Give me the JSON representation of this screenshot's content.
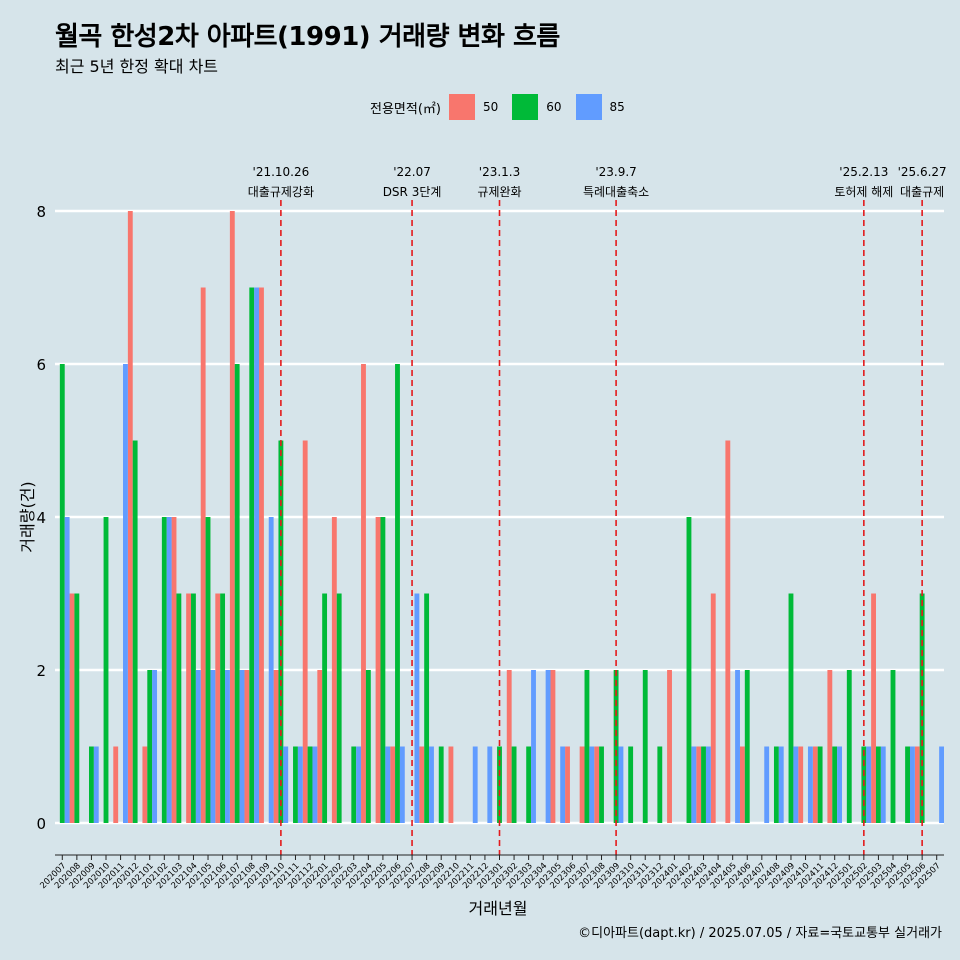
{
  "title": "월곡 한성2차 아파트(1991) 거래량 변화 흐름",
  "subtitle": "최근 5년 한정 확대 차트",
  "caption": "©디아파트(dapt.kr) / 2025.07.05 / 자료=국토교통부 실거래가",
  "legend": {
    "title": "전용면적(㎡)",
    "items": [
      {
        "label": "50",
        "color": "#f8766d"
      },
      {
        "label": "60",
        "color": "#00ba38"
      },
      {
        "label": "85",
        "color": "#619cff"
      }
    ]
  },
  "chart_data": {
    "type": "bar",
    "title": "월곡 한성2차 아파트(1991) 거래량 변화 흐름",
    "subtitle": "최근 5년 한정 확대 차트",
    "xlabel": "거래년월",
    "ylabel": "거래량(건)",
    "ylim": [
      0,
      8
    ],
    "yticks": [
      0,
      2,
      4,
      6,
      8
    ],
    "grid": true,
    "legend_position": "top",
    "categories": [
      "202007",
      "202008",
      "202009",
      "202010",
      "202011",
      "202012",
      "202101",
      "202102",
      "202103",
      "202104",
      "202105",
      "202106",
      "202107",
      "202108",
      "202109",
      "202110",
      "202111",
      "202112",
      "202201",
      "202202",
      "202203",
      "202204",
      "202205",
      "202206",
      "202207",
      "202208",
      "202209",
      "202210",
      "202211",
      "202212",
      "202301",
      "202302",
      "202303",
      "202304",
      "202305",
      "202306",
      "202307",
      "202308",
      "202309",
      "202310",
      "202311",
      "202312",
      "202401",
      "202402",
      "202403",
      "202404",
      "202405",
      "202406",
      "202407",
      "202408",
      "202409",
      "202410",
      "202411",
      "202412",
      "202501",
      "202502",
      "202503",
      "202504",
      "202505",
      "202506",
      "202507"
    ],
    "series": [
      {
        "name": "50",
        "color": "#f8766d",
        "values": [
          0,
          3,
          0,
          0,
          1,
          8,
          1,
          0,
          4,
          3,
          7,
          3,
          8,
          2,
          7,
          2,
          0,
          5,
          2,
          4,
          0,
          6,
          4,
          1,
          0,
          1,
          0,
          1,
          0,
          0,
          0,
          2,
          0,
          0,
          2,
          1,
          1,
          1,
          0,
          0,
          0,
          0,
          2,
          0,
          1,
          3,
          5,
          1,
          0,
          0,
          0,
          1,
          1,
          2,
          0,
          0,
          3,
          0,
          0,
          1,
          0
        ]
      },
      {
        "name": "60",
        "color": "#00ba38",
        "values": [
          6,
          3,
          1,
          4,
          0,
          5,
          2,
          4,
          3,
          3,
          4,
          3,
          6,
          7,
          0,
          5,
          1,
          1,
          3,
          3,
          1,
          2,
          4,
          6,
          0,
          3,
          1,
          0,
          0,
          0,
          1,
          1,
          1,
          0,
          0,
          0,
          2,
          1,
          2,
          1,
          2,
          1,
          0,
          4,
          1,
          0,
          0,
          2,
          0,
          1,
          3,
          0,
          1,
          1,
          2,
          1,
          1,
          2,
          1,
          3,
          0
        ]
      },
      {
        "name": "85",
        "color": "#619cff",
        "values": [
          4,
          0,
          1,
          0,
          6,
          0,
          2,
          4,
          0,
          2,
          2,
          2,
          2,
          7,
          4,
          1,
          1,
          1,
          0,
          0,
          1,
          0,
          1,
          1,
          3,
          1,
          0,
          0,
          1,
          1,
          0,
          0,
          2,
          2,
          1,
          0,
          1,
          0,
          1,
          0,
          0,
          0,
          0,
          1,
          1,
          0,
          2,
          0,
          1,
          1,
          1,
          1,
          0,
          1,
          0,
          1,
          1,
          0,
          1,
          0,
          1
        ]
      }
    ],
    "annotations": [
      {
        "month": "202110",
        "date": "'21.10.26",
        "label": "대출규제강화"
      },
      {
        "month": "202207",
        "date": "'22.07",
        "label": "DSR 3단계"
      },
      {
        "month": "202301",
        "date": "'23.1.3",
        "label": "규제완화"
      },
      {
        "month": "202309",
        "date": "'23.9.7",
        "label": "특례대출축소"
      },
      {
        "month": "202502",
        "date": "'25.2.13",
        "label": "토허제 해제"
      },
      {
        "month": "202506",
        "date": "'25.6.27",
        "label": "대출규제"
      }
    ]
  }
}
